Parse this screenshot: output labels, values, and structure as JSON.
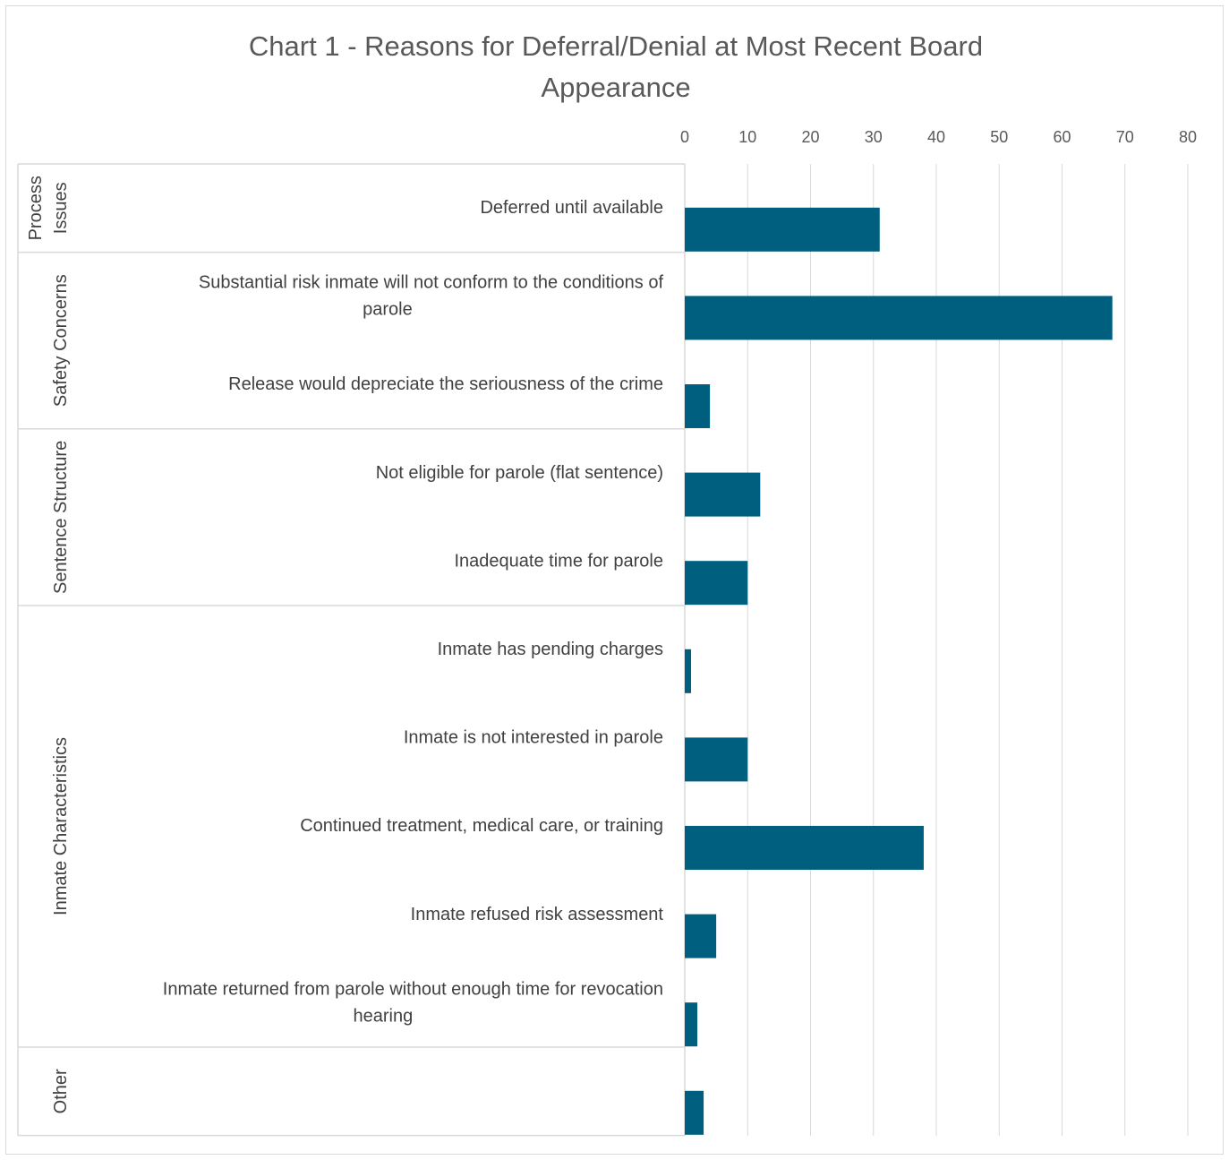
{
  "chart_data": {
    "type": "bar",
    "orientation": "horizontal",
    "title": "Chart 1  - Reasons for Deferral/Denial at Most Recent Board Appearance",
    "title_lines": [
      "Chart 1  - Reasons for Deferral/Denial at Most Recent Board",
      "Appearance"
    ],
    "xlim": [
      0,
      80
    ],
    "x_ticks": [
      "0",
      "10",
      "20",
      "30",
      "40",
      "50",
      "60",
      "70",
      "80"
    ],
    "axis_position": "top",
    "grid": true,
    "bar_color": "#005F7F",
    "groups": [
      {
        "name_lines": [
          "Process",
          "Issues"
        ],
        "items": [
          {
            "label_lines": [
              "Deferred until available"
            ],
            "value": 31
          }
        ]
      },
      {
        "name_lines": [
          "Safety Concerns"
        ],
        "items": [
          {
            "label_lines": [
              "Substantial risk inmate will not conform to the conditions of",
              "parole"
            ],
            "value": 68
          },
          {
            "label_lines": [
              "Release would depreciate the seriousness of the crime"
            ],
            "value": 4
          }
        ]
      },
      {
        "name_lines": [
          "Sentence Structure"
        ],
        "items": [
          {
            "label_lines": [
              "Not eligible for parole (flat sentence)"
            ],
            "value": 12
          },
          {
            "label_lines": [
              "Inadequate time for parole"
            ],
            "value": 10
          }
        ]
      },
      {
        "name_lines": [
          "Inmate Characteristics"
        ],
        "items": [
          {
            "label_lines": [
              "Inmate has pending charges"
            ],
            "value": 1
          },
          {
            "label_lines": [
              "Inmate is not interested in parole"
            ],
            "value": 10
          },
          {
            "label_lines": [
              "Continued treatment, medical care, or training"
            ],
            "value": 38
          },
          {
            "label_lines": [
              "Inmate refused risk assessment"
            ],
            "value": 5
          },
          {
            "label_lines": [
              "Inmate returned from parole without enough time for revocation",
              "hearing"
            ],
            "value": 2
          }
        ]
      },
      {
        "name_lines": [
          "Other"
        ],
        "items": [
          {
            "label_lines": [],
            "value": 3
          }
        ]
      }
    ]
  }
}
